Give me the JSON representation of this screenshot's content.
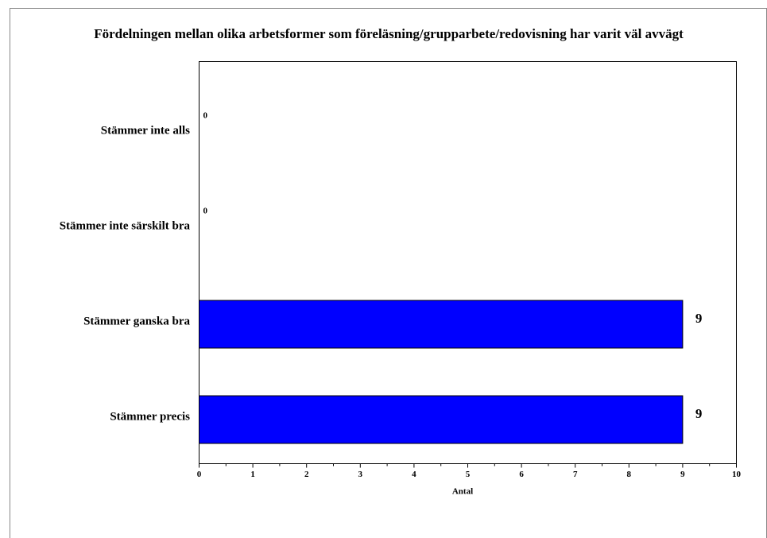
{
  "chart_data": {
    "type": "bar",
    "orientation": "horizontal",
    "title": "Fördelningen mellan olika arbetsformer som föreläsning/grupparbete/redovisning har varit väl avvägt",
    "categories": [
      "Stämmer inte alls",
      "Stämmer inte särskilt bra",
      "Stämmer ganska bra",
      "Stämmer precis"
    ],
    "values": [
      0,
      0,
      9,
      9
    ],
    "color": "#0000ff",
    "xlabel": "Antal",
    "xlim": [
      0,
      10
    ],
    "xticks": [
      0,
      1,
      2,
      3,
      4,
      5,
      6,
      7,
      8,
      9,
      10
    ]
  }
}
